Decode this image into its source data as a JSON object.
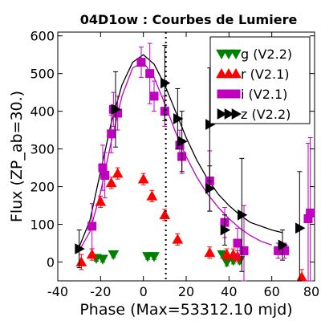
{
  "chart_data": {
    "type": "scatter",
    "title": "04D1ow : Courbes de Lumiere",
    "xlabel": "Phase (Max=53312.10 mjd)",
    "ylabel": "Flux (ZP_ab=30.)",
    "xlim": [
      -40,
      80
    ],
    "ylim": [
      -50,
      610
    ],
    "xticks": [
      -40,
      -20,
      0,
      20,
      40,
      60,
      80
    ],
    "yticks": [
      0,
      100,
      200,
      300,
      400,
      500,
      600
    ],
    "vline_x": 10.5,
    "legend_position": "top-right",
    "series": [
      {
        "name": "g (V2.2)",
        "marker": "triangle-down",
        "color": "#008000",
        "points": [
          {
            "x": -22,
            "y": 10,
            "err": 8
          },
          {
            "x": -19,
            "y": 8,
            "err": 8
          },
          {
            "x": -14,
            "y": 20,
            "err": 8
          },
          {
            "x": 2,
            "y": 15,
            "err": 8
          },
          {
            "x": 5,
            "y": 15,
            "err": 8
          },
          {
            "x": 37,
            "y": 20,
            "err": 10
          },
          {
            "x": 39,
            "y": 0,
            "err": 10
          },
          {
            "x": 42,
            "y": 5,
            "err": 10
          },
          {
            "x": 45,
            "y": 5,
            "err": 10
          }
        ]
      },
      {
        "name": "r (V2.1)",
        "marker": "triangle-up",
        "color": "#ff0000",
        "points": [
          {
            "x": -29,
            "y": 0,
            "err": 20
          },
          {
            "x": -24,
            "y": 20,
            "err": 15
          },
          {
            "x": -20,
            "y": 160,
            "err": 15
          },
          {
            "x": -15,
            "y": 210,
            "err": 15
          },
          {
            "x": -12,
            "y": 235,
            "err": 15
          },
          {
            "x": 0,
            "y": 220,
            "err": 15
          },
          {
            "x": 4,
            "y": 175,
            "err": 15
          },
          {
            "x": 10,
            "y": 125,
            "err": 15
          },
          {
            "x": 16,
            "y": 60,
            "err": 15
          },
          {
            "x": 31,
            "y": 25,
            "err": 15
          },
          {
            "x": 39,
            "y": 20,
            "err": 15
          },
          {
            "x": 42,
            "y": 20,
            "err": 15
          },
          {
            "x": 44,
            "y": 15,
            "err": 15
          },
          {
            "x": 74,
            "y": -40,
            "err": 20
          }
        ]
      },
      {
        "name": "i (V2.1)",
        "marker": "square",
        "color": "#bf00bf",
        "points": [
          {
            "x": -24,
            "y": 95,
            "err": 60
          },
          {
            "x": -19,
            "y": 250,
            "err": 60
          },
          {
            "x": -18,
            "y": 230,
            "err": 60
          },
          {
            "x": -15,
            "y": 340,
            "err": 50
          },
          {
            "x": -14,
            "y": 405,
            "err": 45
          },
          {
            "x": -12,
            "y": 395,
            "err": 45
          },
          {
            "x": -1,
            "y": 530,
            "err": 40
          },
          {
            "x": 3,
            "y": 500,
            "err": 80
          },
          {
            "x": 5,
            "y": 440,
            "err": 40
          },
          {
            "x": 10,
            "y": 400,
            "err": 40
          },
          {
            "x": 17,
            "y": 310,
            "err": 40
          },
          {
            "x": 18,
            "y": 280,
            "err": 45
          },
          {
            "x": 31,
            "y": 215,
            "err": 80
          },
          {
            "x": 38,
            "y": 105,
            "err": 40
          },
          {
            "x": 44,
            "y": 50,
            "err": 40
          },
          {
            "x": 47,
            "y": 30,
            "err": 120
          },
          {
            "x": 63,
            "y": 30,
            "err": 20
          },
          {
            "x": 66,
            "y": 30,
            "err": 20
          },
          {
            "x": 77,
            "y": 115,
            "err": 200
          },
          {
            "x": 78,
            "y": 130,
            "err": 200
          }
        ]
      },
      {
        "name": "z (V2.2)",
        "marker": "triangle-right",
        "color": "#000000",
        "points": [
          {
            "x": -30,
            "y": 35,
            "err": 50
          },
          {
            "x": -13,
            "y": 405,
            "err": 100
          },
          {
            "x": 10,
            "y": 475,
            "err": 100
          },
          {
            "x": 16,
            "y": 380,
            "err": 80
          },
          {
            "x": 18,
            "y": 320,
            "err": 80
          },
          {
            "x": 31,
            "y": 365,
            "err": 150
          },
          {
            "x": 31,
            "y": 195,
            "err": 60
          },
          {
            "x": 38,
            "y": 85,
            "err": 40
          },
          {
            "x": 46,
            "y": 125,
            "err": 150
          },
          {
            "x": 65,
            "y": 45,
            "err": 40
          },
          {
            "x": 73,
            "y": 90,
            "err": 150
          }
        ]
      }
    ],
    "curves": [
      {
        "name": "fit-i",
        "color": "#bf00bf",
        "points": [
          [
            -30,
            30
          ],
          [
            -25,
            80
          ],
          [
            -20,
            185
          ],
          [
            -15,
            320
          ],
          [
            -10,
            440
          ],
          [
            -5,
            515
          ],
          [
            0,
            530
          ],
          [
            5,
            490
          ],
          [
            10,
            420
          ],
          [
            15,
            345
          ],
          [
            20,
            280
          ],
          [
            25,
            225
          ],
          [
            30,
            180
          ],
          [
            35,
            145
          ],
          [
            40,
            115
          ],
          [
            45,
            90
          ],
          [
            50,
            70
          ],
          [
            55,
            55
          ],
          [
            60,
            45
          ]
        ]
      },
      {
        "name": "fit-z",
        "color": "#000000",
        "points": [
          [
            -30,
            40
          ],
          [
            -25,
            110
          ],
          [
            -20,
            240
          ],
          [
            -15,
            370
          ],
          [
            -10,
            470
          ],
          [
            -5,
            530
          ],
          [
            0,
            550
          ],
          [
            5,
            525
          ],
          [
            10,
            470
          ],
          [
            15,
            400
          ],
          [
            20,
            330
          ],
          [
            25,
            270
          ],
          [
            30,
            220
          ],
          [
            35,
            180
          ],
          [
            40,
            150
          ],
          [
            45,
            125
          ],
          [
            50,
            105
          ],
          [
            55,
            95
          ],
          [
            60,
            85
          ],
          [
            65,
            78
          ]
        ]
      }
    ]
  }
}
